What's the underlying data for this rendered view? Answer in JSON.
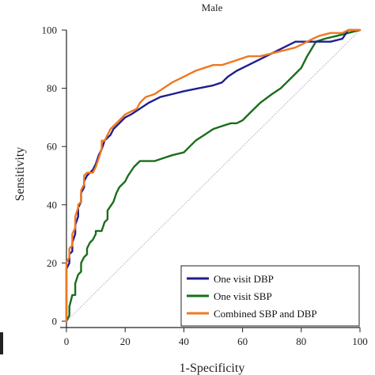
{
  "chart_data": {
    "type": "line",
    "title": "Male",
    "xlabel": "1-Specificity",
    "ylabel": "Sensitivity",
    "xlim": [
      0,
      100
    ],
    "ylim": [
      0,
      100
    ],
    "x_ticks": [
      0,
      20,
      40,
      60,
      80,
      100
    ],
    "y_ticks": [
      0,
      20,
      40,
      60,
      80,
      100
    ],
    "grid": false,
    "legend_position": "bottom-right",
    "reference_line": {
      "x": [
        0,
        100
      ],
      "y": [
        0,
        100
      ],
      "color": "#c8a0c8"
    },
    "series": [
      {
        "name": "One visit DBP",
        "color": "#1f1f8f",
        "x": [
          0,
          0,
          1,
          1,
          2,
          2,
          3,
          3,
          4,
          4,
          5,
          5,
          6,
          6,
          7,
          8,
          9,
          10,
          11,
          12,
          13,
          14,
          15,
          16,
          18,
          20,
          22,
          25,
          28,
          32,
          36,
          40,
          45,
          50,
          53,
          55,
          58,
          62,
          66,
          70,
          74,
          78,
          82,
          86,
          90,
          94,
          96,
          100
        ],
        "y": [
          0,
          18,
          20,
          23,
          24,
          27,
          30,
          33,
          36,
          39,
          41,
          44,
          46,
          48,
          50,
          51,
          52,
          54,
          57,
          59,
          62,
          63,
          64,
          66,
          68,
          70,
          71,
          73,
          75,
          77,
          78,
          79,
          80,
          81,
          82,
          84,
          86,
          88,
          90,
          92,
          94,
          96,
          96,
          96,
          96,
          97,
          100,
          100
        ]
      },
      {
        "name": "One visit SBP",
        "color": "#1a6e1a",
        "x": [
          0,
          1,
          1,
          2,
          3,
          3,
          4,
          5,
          5,
          6,
          7,
          7,
          8,
          9,
          10,
          10,
          12,
          13,
          14,
          14,
          16,
          17,
          18,
          20,
          21,
          23,
          25,
          27,
          30,
          33,
          36,
          40,
          42,
          44,
          47,
          50,
          53,
          56,
          58,
          60,
          63,
          66,
          70,
          73,
          75,
          77,
          79,
          80,
          82,
          85,
          88,
          92,
          96,
          100
        ],
        "y": [
          0,
          2,
          5,
          9,
          9,
          13,
          16,
          17,
          20,
          22,
          23,
          25,
          27,
          28,
          30,
          31,
          31,
          34,
          35,
          38,
          41,
          44,
          46,
          48,
          50,
          53,
          55,
          55,
          55,
          56,
          57,
          58,
          60,
          62,
          64,
          66,
          67,
          68,
          68,
          69,
          72,
          75,
          78,
          80,
          82,
          84,
          86,
          87,
          91,
          96,
          97,
          98,
          99,
          100
        ]
      },
      {
        "name": "Combined SBP and DBP",
        "color": "#f07820",
        "x": [
          0,
          0,
          1,
          1,
          2,
          2,
          3,
          3,
          4,
          4,
          5,
          5,
          6,
          6,
          7,
          8,
          9,
          10,
          11,
          12,
          12,
          13,
          14,
          15,
          16,
          17,
          18,
          19,
          20,
          22,
          24,
          25,
          27,
          30,
          33,
          36,
          40,
          42,
          44,
          47,
          50,
          53,
          56,
          59,
          62,
          66,
          70,
          74,
          78,
          82,
          84,
          86,
          90,
          94,
          96,
          100
        ],
        "y": [
          0,
          20,
          22,
          25,
          26,
          30,
          32,
          36,
          39,
          40,
          41,
          45,
          47,
          50,
          51,
          51,
          51,
          53,
          56,
          59,
          62,
          62,
          64,
          66,
          67,
          68,
          69,
          70,
          71,
          72,
          73,
          75,
          77,
          78,
          80,
          82,
          84,
          85,
          86,
          87,
          88,
          88,
          89,
          90,
          91,
          91,
          92,
          93,
          94,
          96,
          97,
          98,
          99,
          99,
          100,
          100
        ]
      }
    ]
  }
}
